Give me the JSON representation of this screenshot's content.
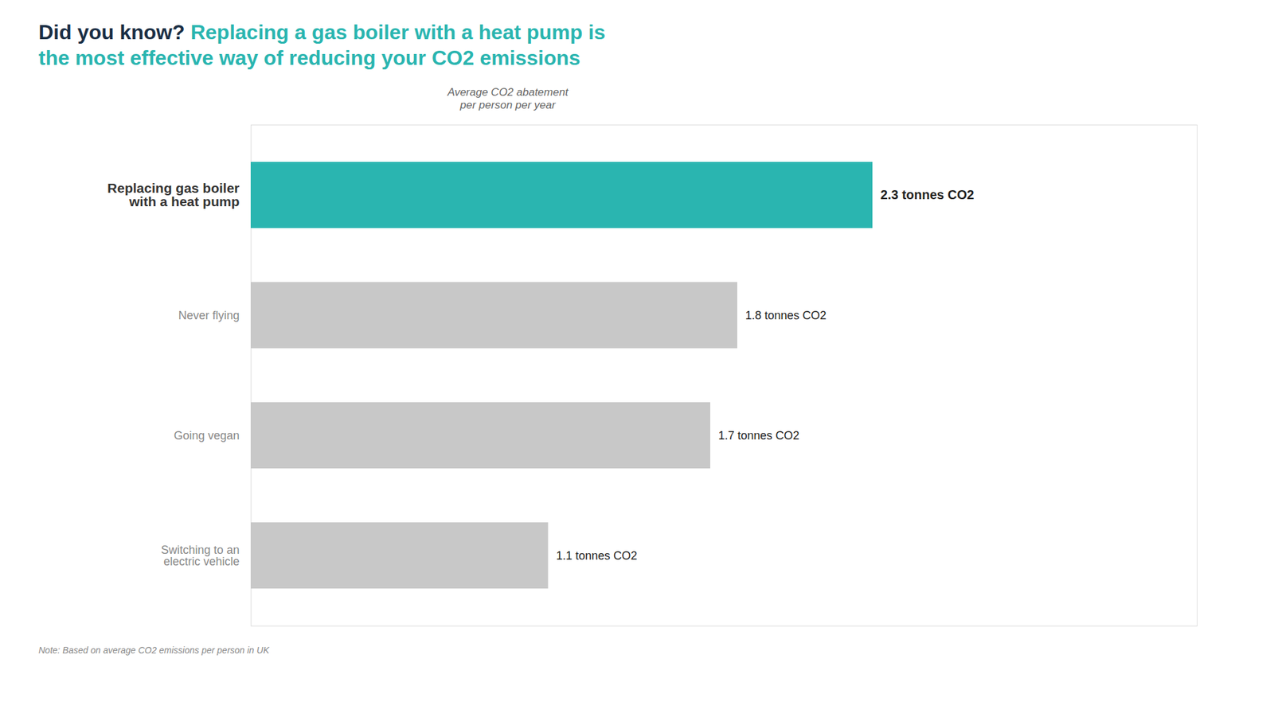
{
  "chart_data": {
    "type": "bar",
    "orientation": "horizontal",
    "title": "Did you know? Replacing a gas boiler with a heat pump is\nthe most effective way of reducing your CO2 emissions",
    "subtitle": "Average CO2 abatement\nper person per year",
    "caption": "Note: Based on average CO2 emissions per person in UK",
    "categories": [
      "Replacing gas boiler\nwith a heat pump",
      "Never flying",
      "Going vegan",
      "Switching to an\nelectric vehicle"
    ],
    "values": [
      2.3,
      1.8,
      1.7,
      1.1
    ],
    "value_labels": [
      "2.3 tonnes CO2",
      "1.8 tonnes CO2",
      "1.7 tonnes CO2",
      "1.1 tonnes CO2"
    ],
    "colors": [
      "#2ab5b0",
      "#c8c8c8",
      "#c8c8c8",
      "#c8c8c8"
    ],
    "xlim": [
      0.0,
      3.5
    ],
    "data_labels": true,
    "tick_labels": false,
    "grid": false
  }
}
